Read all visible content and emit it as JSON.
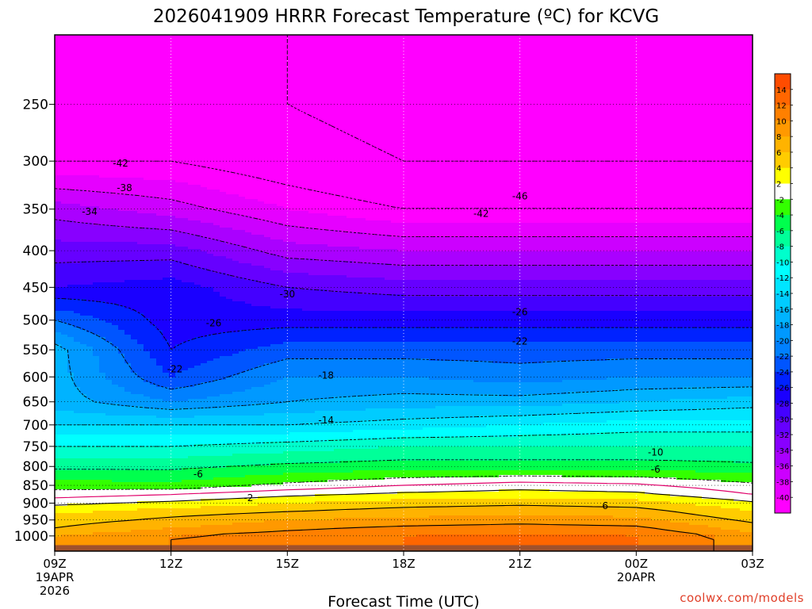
{
  "chart_data": {
    "type": "heatmap",
    "title": "2026041909 HRRR Forecast Temperature (ºC) for KCVG",
    "xlabel": "Forecast Time (UTC)",
    "ylabel": "",
    "x_tick_labels": [
      {
        "hour": 0,
        "lines": [
          "09Z",
          "19APR",
          "2026"
        ]
      },
      {
        "hour": 3,
        "lines": [
          "12Z"
        ]
      },
      {
        "hour": 6,
        "lines": [
          "15Z"
        ]
      },
      {
        "hour": 9,
        "lines": [
          "18Z"
        ]
      },
      {
        "hour": 12,
        "lines": [
          "21Z"
        ]
      },
      {
        "hour": 15,
        "lines": [
          "00Z",
          "20APR"
        ]
      },
      {
        "hour": 18,
        "lines": [
          "03Z"
        ]
      }
    ],
    "xlim": [
      0,
      18
    ],
    "y_ticks": [
      250,
      300,
      350,
      400,
      450,
      500,
      550,
      600,
      650,
      700,
      750,
      800,
      850,
      900,
      950,
      1000
    ],
    "ylim": [
      200,
      1050
    ],
    "y_scale": "log-pressure",
    "grid": true,
    "colorbar": {
      "labels": [
        14,
        12,
        10,
        8,
        6,
        4,
        2,
        -2,
        -4,
        -6,
        -8,
        -10,
        -12,
        -14,
        -16,
        -18,
        -20,
        -22,
        -24,
        -26,
        -28,
        -30,
        -32,
        -34,
        -36,
        -38,
        -40
      ],
      "colors": [
        "#ff4c00",
        "#ff6600",
        "#ff8000",
        "#ff9900",
        "#ffb300",
        "#ffcc00",
        "#ffff00",
        "#ffffff",
        "#33ff00",
        "#00ff4d",
        "#00ff99",
        "#00ffcc",
        "#00ffff",
        "#00e5ff",
        "#00ccff",
        "#00b3ff",
        "#0099ff",
        "#0080ff",
        "#0055ff",
        "#0022ff",
        "#1a00ff",
        "#4400ff",
        "#6600ff",
        "#8800ff",
        "#aa00ff",
        "#cc00ff",
        "#e600ff",
        "#ff00ff"
      ]
    },
    "ground_color": "#a0522d",
    "temperature_profile": {
      "hours": [
        0,
        3,
        6,
        9,
        12,
        15,
        18
      ],
      "levels": [
        1000,
        975,
        950,
        925,
        900,
        875,
        850,
        800,
        750,
        700,
        650,
        600,
        550,
        500,
        450,
        400,
        350,
        300,
        250
      ],
      "values": [
        [
          8,
          10,
          11,
          12,
          12.5,
          12,
          9
        ],
        [
          6,
          8,
          9.5,
          10.5,
          11,
          10.5,
          7
        ],
        [
          5,
          6.5,
          8,
          8.5,
          9,
          8.5,
          5.5
        ],
        [
          3.5,
          5,
          6,
          7,
          7.5,
          7,
          4
        ],
        [
          1.5,
          2.5,
          4,
          5,
          5.5,
          5,
          2.5
        ],
        [
          -1,
          0,
          1.5,
          2.5,
          3,
          2.5,
          0
        ],
        [
          -3,
          -3.5,
          -1.5,
          0,
          1,
          0.5,
          -1.5
        ],
        [
          -6.5,
          -6.5,
          -5.5,
          -5,
          -5,
          -5,
          -5.5
        ],
        [
          -10,
          -10,
          -9,
          -8,
          -8,
          -8,
          -8
        ],
        [
          -14,
          -14,
          -14,
          -13,
          -12,
          -11,
          -11
        ],
        [
          -17,
          -20,
          -18,
          -17,
          -17,
          -16,
          -15
        ],
        [
          -17,
          -24,
          -20,
          -20,
          -21,
          -20,
          -20
        ],
        [
          -17,
          -26,
          -23,
          -23,
          -23,
          -23,
          -23
        ],
        [
          -22,
          -27,
          -27,
          -27,
          -27,
          -27,
          -27
        ],
        [
          -28,
          -27,
          -30,
          -31,
          -31,
          -31,
          -31
        ],
        [
          -31,
          -31,
          -35,
          -36,
          -36,
          -36,
          -36
        ],
        [
          -35,
          -37,
          -40,
          -42,
          -42,
          -42,
          -42
        ],
        [
          -42,
          -42,
          -44,
          -46,
          -46,
          -46,
          -46
        ],
        [
          -45,
          -45,
          -46,
          -48,
          -49,
          -49,
          -49
        ]
      ]
    },
    "contour_labels": [
      {
        "text": "-42",
        "hour": 1.7,
        "level": 302
      },
      {
        "text": "-38",
        "hour": 1.8,
        "level": 327
      },
      {
        "text": "-34",
        "hour": 0.9,
        "level": 353
      },
      {
        "text": "-30",
        "hour": 6.0,
        "level": 460
      },
      {
        "text": "-26",
        "hour": 4.1,
        "level": 505
      },
      {
        "text": "-22",
        "hour": 3.1,
        "level": 585
      },
      {
        "text": "-18",
        "hour": 7.0,
        "level": 597
      },
      {
        "text": "-14",
        "hour": 7.0,
        "level": 690
      },
      {
        "text": "-10",
        "hour": 15.5,
        "level": 765
      },
      {
        "text": "-6",
        "hour": 3.7,
        "level": 820
      },
      {
        "text": "-6",
        "hour": 15.5,
        "level": 808
      },
      {
        "text": "-2",
        "hour": 5.0,
        "level": 885
      },
      {
        "text": "6",
        "hour": 14.2,
        "level": 908
      },
      {
        "text": "-46",
        "hour": 12.0,
        "level": 336
      },
      {
        "text": "-42",
        "hour": 11.0,
        "level": 355
      },
      {
        "text": "-26",
        "hour": 12.0,
        "level": 487
      },
      {
        "text": "-22",
        "hour": 12.0,
        "level": 535
      }
    ],
    "credit": "coolwx.com/models"
  }
}
